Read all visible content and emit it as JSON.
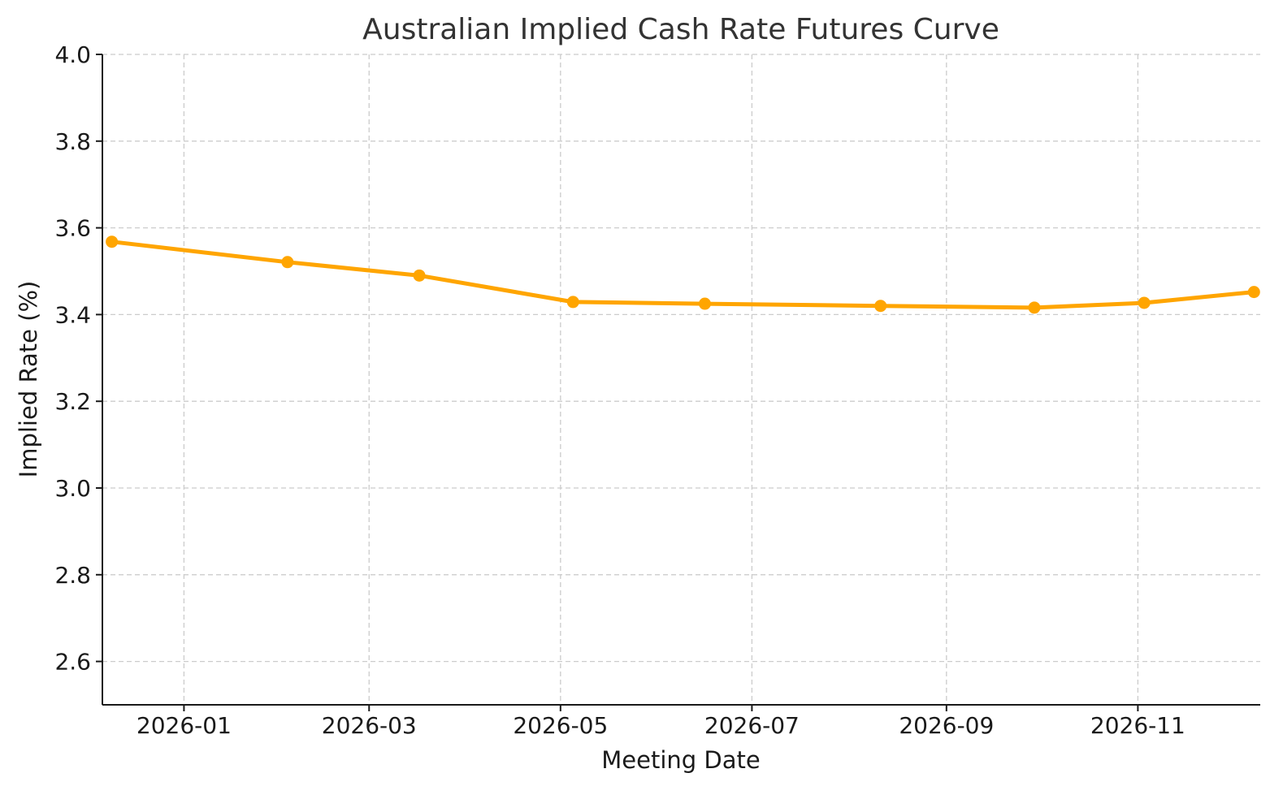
{
  "chart_data": {
    "type": "line",
    "title": "Australian Implied Cash Rate Futures Curve",
    "xlabel": "Meeting Date",
    "ylabel": "Implied Rate (%)",
    "ylim": [
      2.5,
      4.0
    ],
    "yticks": [
      2.6,
      2.8,
      3.0,
      3.2,
      3.4,
      3.6,
      3.8,
      4.0
    ],
    "x_range_days": [
      -26,
      343
    ],
    "xticks": [
      {
        "label": "2026-01",
        "day": 0
      },
      {
        "label": "2026-03",
        "day": 59
      },
      {
        "label": "2026-05",
        "day": 120
      },
      {
        "label": "2026-07",
        "day": 181
      },
      {
        "label": "2026-09",
        "day": 243
      },
      {
        "label": "2026-11",
        "day": 304
      }
    ],
    "grid": true,
    "series": [
      {
        "name": "Implied Cash Rate",
        "color": "#FFA500",
        "x_dates": [
          "2025-12-09",
          "2026-02-03",
          "2026-03-17",
          "2026-05-05",
          "2026-06-16",
          "2026-08-11",
          "2026-09-29",
          "2026-11-03",
          "2026-12-08"
        ],
        "x_days": [
          -23,
          33,
          75,
          124,
          166,
          222,
          271,
          306,
          341
        ],
        "values": [
          3.568,
          3.521,
          3.49,
          3.429,
          3.425,
          3.42,
          3.416,
          3.427,
          3.452
        ]
      }
    ]
  }
}
